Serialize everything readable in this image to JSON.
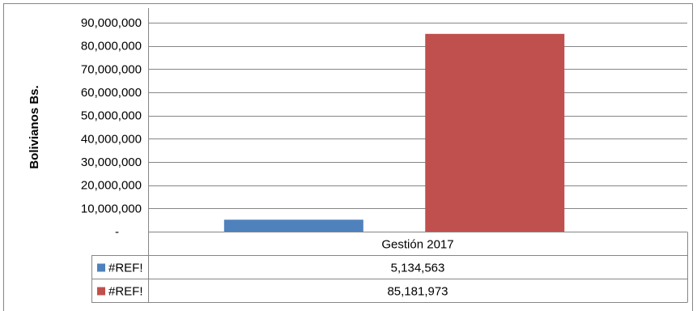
{
  "chart_data": {
    "type": "bar",
    "categories": [
      "Gestión 2017"
    ],
    "series": [
      {
        "name": "#REF!",
        "values": [
          5134563
        ],
        "value_label": "5,134,563",
        "color": "#4F81BD"
      },
      {
        "name": "#REF!",
        "values": [
          85181973
        ],
        "value_label": "85,181,973",
        "color": "#C0504D"
      }
    ],
    "ylabel": "Bolivianos Bs.",
    "ylim": [
      0,
      90000000
    ],
    "yticks": [
      0,
      10000000,
      20000000,
      30000000,
      40000000,
      50000000,
      60000000,
      70000000,
      80000000,
      90000000
    ],
    "ytick_labels": [
      "-",
      "10,000,000",
      "20,000,000",
      "30,000,000",
      "40,000,000",
      "50,000,000",
      "60,000,000",
      "70,000,000",
      "80,000,000",
      "90,000,000"
    ],
    "grid": true,
    "legend": "data-table"
  }
}
